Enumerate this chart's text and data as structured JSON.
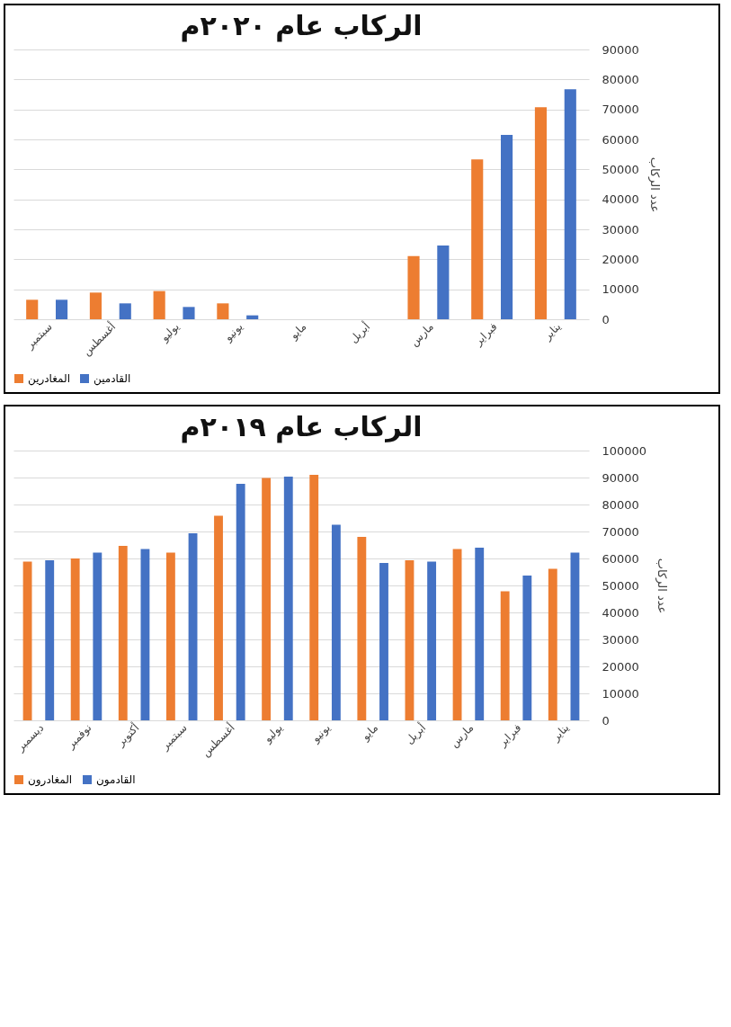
{
  "chart_data": [
    {
      "type": "bar",
      "title": "الركاب عام ٢٠٢٠م",
      "ylabel": "عدد الركاب",
      "categories": [
        "سبتمبر",
        "أغسطس",
        "يوليو",
        "يونيو",
        "مايو",
        "أبريل",
        "مارس",
        "فبراير",
        "يناير"
      ],
      "series": [
        {
          "name": "المغادرين",
          "color": "#ed7d31",
          "values": [
            6500,
            8900,
            9400,
            5300,
            0,
            0,
            21100,
            53300,
            70700
          ]
        },
        {
          "name": "القادمين",
          "color": "#4472c4",
          "values": [
            6500,
            5300,
            4100,
            1300,
            0,
            0,
            24600,
            61500,
            76700
          ]
        }
      ],
      "ylim": [
        0,
        90000
      ],
      "yticks": [
        0,
        10000,
        20000,
        30000,
        40000,
        50000,
        60000,
        70000,
        80000,
        90000
      ],
      "grid": "y",
      "legend": "bottom"
    },
    {
      "type": "bar",
      "title": "الركاب عام ٢٠١٩م",
      "ylabel": "عدد الركاب",
      "categories": [
        "ديسمبر",
        "نوفمبر",
        "أكتوبر",
        "سبتمبر",
        "أغسطس",
        "يوليو",
        "يونيو",
        "مايو",
        "أبريل",
        "مارس",
        "فبراير",
        "يناير"
      ],
      "series": [
        {
          "name": "المغادرون",
          "color": "#ed7d31",
          "values": [
            58800,
            60000,
            64700,
            62200,
            75800,
            89800,
            91000,
            68000,
            59300,
            63500,
            47800,
            56200
          ]
        },
        {
          "name": "القادمون",
          "color": "#4472c4",
          "values": [
            59300,
            62200,
            63500,
            69300,
            87700,
            90300,
            72500,
            58300,
            58800,
            64000,
            53700,
            62200
          ]
        }
      ],
      "ylim": [
        0,
        100000
      ],
      "yticks": [
        0,
        10000,
        20000,
        30000,
        40000,
        50000,
        60000,
        70000,
        80000,
        90000,
        100000
      ],
      "grid": "y",
      "legend": "bottom"
    }
  ]
}
